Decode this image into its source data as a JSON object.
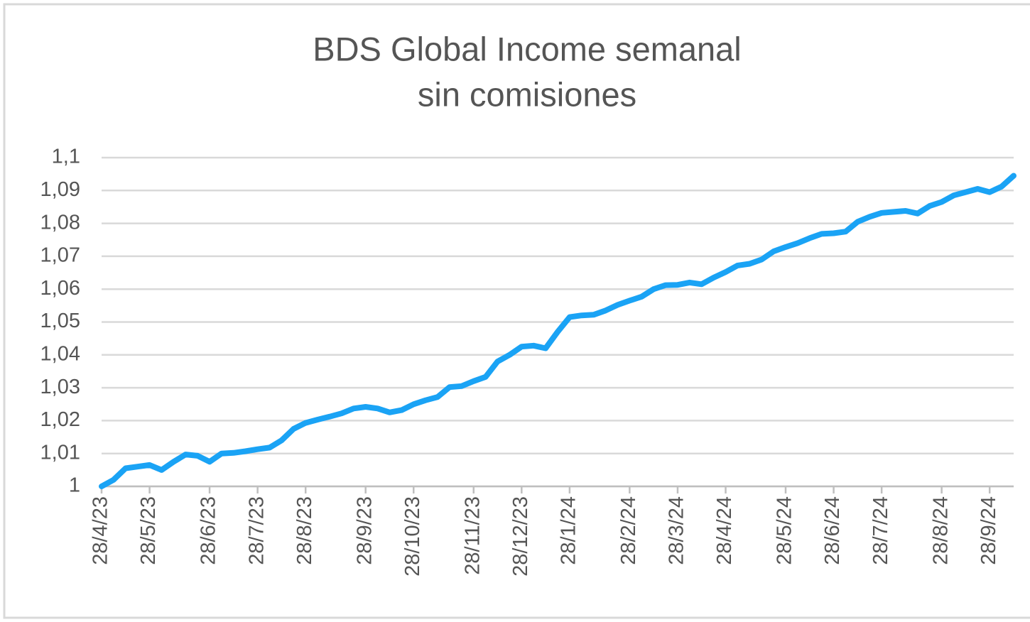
{
  "chart_data": {
    "type": "line",
    "title": [
      "BDS Global Income semanal",
      "sin comisiones"
    ],
    "categories": [
      "28/4/23",
      null,
      null,
      null,
      "28/5/23",
      null,
      null,
      null,
      null,
      "28/6/23",
      null,
      null,
      null,
      "28/7/23",
      null,
      null,
      null,
      "28/8/23",
      null,
      null,
      null,
      null,
      "28/9/23",
      null,
      null,
      null,
      "28/10/23",
      null,
      null,
      null,
      null,
      "28/11/23",
      null,
      null,
      null,
      "28/12/23",
      null,
      null,
      null,
      "28/1/24",
      null,
      null,
      null,
      null,
      "28/2/24",
      null,
      null,
      null,
      "28/3/24",
      null,
      null,
      null,
      "28/4/24",
      null,
      null,
      null,
      null,
      "28/5/24",
      null,
      null,
      null,
      "28/6/24",
      null,
      null,
      null,
      "28/7/24",
      null,
      null,
      null,
      null,
      "28/8/24",
      null,
      null,
      null,
      "28/9/24",
      null,
      null
    ],
    "values": [
      1.0,
      1.002,
      1.0055,
      1.006,
      1.0065,
      1.005,
      1.0075,
      1.0097,
      1.0093,
      1.0075,
      1.01,
      1.0102,
      1.0107,
      1.0113,
      1.0118,
      1.014,
      1.0175,
      1.0193,
      1.0203,
      1.0212,
      1.0222,
      1.0237,
      1.0242,
      1.0237,
      1.0225,
      1.0232,
      1.025,
      1.0262,
      1.0272,
      1.0302,
      1.0305,
      1.032,
      1.0333,
      1.038,
      1.04,
      1.0425,
      1.0428,
      1.042,
      1.047,
      1.0515,
      1.052,
      1.0522,
      1.0535,
      1.0552,
      1.0565,
      1.0577,
      1.06,
      1.0612,
      1.0613,
      1.062,
      1.0615,
      1.0635,
      1.0652,
      1.0672,
      1.0677,
      1.069,
      1.0715,
      1.0728,
      1.074,
      1.0755,
      1.0768,
      1.077,
      1.0775,
      1.0805,
      1.082,
      1.0832,
      1.0835,
      1.0838,
      1.083,
      1.0853,
      1.0865,
      1.0885,
      1.0895,
      1.0905,
      1.0895,
      1.0912,
      1.0945
    ],
    "color": "#1aa3f5",
    "ylim": [
      1,
      1.1
    ],
    "yticks": [
      1,
      {
        "value": 1.01,
        "label": "1,01"
      },
      {
        "value": 1.02,
        "label": "1,02"
      },
      {
        "value": 1.03,
        "label": "1,03"
      },
      {
        "value": 1.04,
        "label": "1,04"
      },
      {
        "value": 1.05,
        "label": "1,05"
      },
      {
        "value": 1.06,
        "label": "1,06"
      },
      {
        "value": 1.07,
        "label": "1,07"
      },
      {
        "value": 1.08,
        "label": "1,08"
      },
      {
        "value": 1.09,
        "label": "1,09"
      },
      {
        "value": 1.1,
        "label": "1,1"
      }
    ],
    "grid": true
  }
}
